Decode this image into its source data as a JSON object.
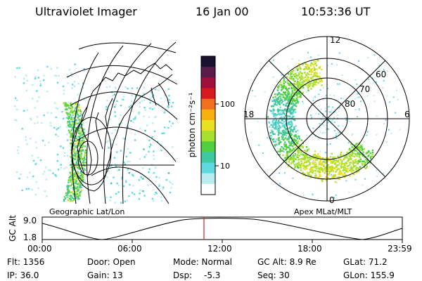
{
  "header": {
    "instrument": "Ultraviolet Imager",
    "date": "16 Jan 00",
    "time": "10:53:36 UT"
  },
  "colorbar": {
    "label": "photon cm⁻²s⁻¹",
    "ticks": [
      "100",
      "10"
    ],
    "colors": [
      "#1a1030",
      "#5a1a4a",
      "#a0103a",
      "#d81a20",
      "#f07020",
      "#f8b010",
      "#e8e020",
      "#a8e030",
      "#50d040",
      "#40c8a0",
      "#60d8e0",
      "#b8ecf0",
      "#ffffff"
    ]
  },
  "geo_panel": {
    "caption": "Geographic Lat/Lon"
  },
  "polar_panel": {
    "caption": "Apex MLat/MLT",
    "mlt_labels": {
      "top": "12",
      "left": "18",
      "right": "6",
      "bottom": "0"
    },
    "lat_labels": [
      "60",
      "70",
      "80"
    ]
  },
  "orbit_plot": {
    "ylabel": "GC Alt",
    "yticks": [
      "9.0",
      "1.8"
    ],
    "xticks": [
      "00:00",
      "06:00",
      "12:00",
      "18:00",
      "23:59"
    ],
    "marker_color": "#cc2020"
  },
  "info": {
    "flt": "Flt: 1356",
    "ip": "IP: 36.0",
    "door": "Door: Open",
    "gain": "Gain: 13",
    "mode": "Mode: Normal",
    "dsp_label": "Dsp:",
    "dsp_value": "-5.3",
    "gc_alt": "GC Alt: 8.9 Re",
    "seq": "Seq: 30",
    "glat": "GLat: 71.2",
    "glon": "GLon: 155.9"
  }
}
